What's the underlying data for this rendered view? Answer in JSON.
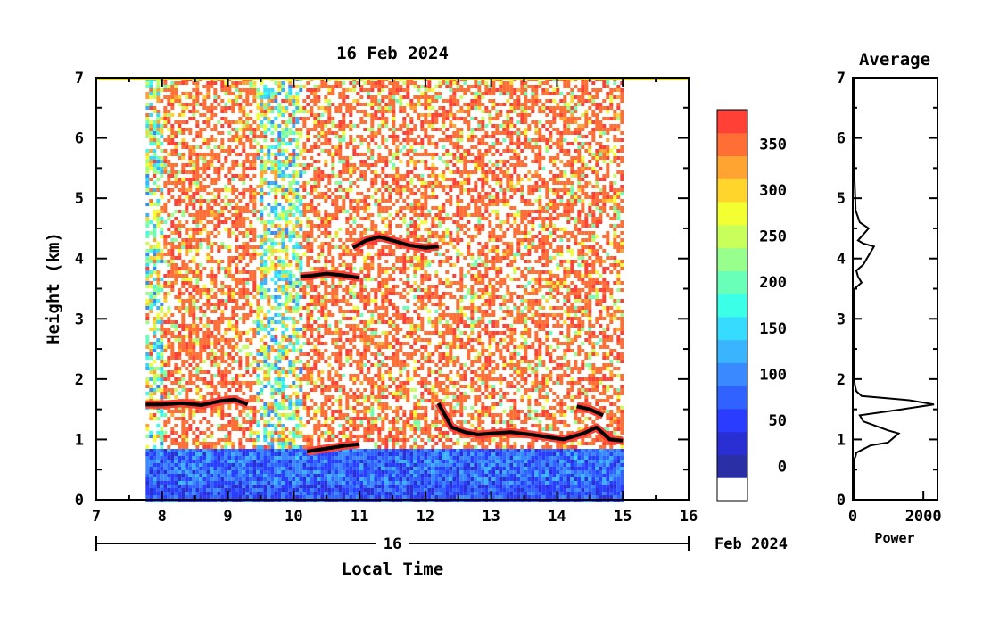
{
  "chart_data": [
    {
      "type": "heatmap",
      "title": "16 Feb 2024",
      "xlabel": "Local Time",
      "ylabel": "Height (km)",
      "xlim": [
        7,
        16
      ],
      "ylim": [
        0,
        7
      ],
      "x_ticks": [
        "7",
        "8",
        "9",
        "10",
        "11",
        "12",
        "13",
        "14",
        "15",
        "16"
      ],
      "y_ticks": [
        "0",
        "1",
        "2",
        "3",
        "4",
        "5",
        "6",
        "7"
      ],
      "date_axis": {
        "day_label": "16",
        "month_year_label": "Feb 2024"
      },
      "data_range": [
        7.75,
        15.0
      ],
      "colorbar": {
        "ticks": [
          "0",
          "50",
          "100",
          "150",
          "200",
          "250",
          "300",
          "350"
        ],
        "levels": [
          {
            "value": -25,
            "color": "#ffffff"
          },
          {
            "value": 0,
            "color": "#2b2fa6"
          },
          {
            "value": 25,
            "color": "#2a2fd4"
          },
          {
            "value": 50,
            "color": "#2a3cff"
          },
          {
            "value": 75,
            "color": "#2f62ff"
          },
          {
            "value": 100,
            "color": "#3a8aff"
          },
          {
            "value": 125,
            "color": "#3ab4ff"
          },
          {
            "value": 150,
            "color": "#36dcff"
          },
          {
            "value": 175,
            "color": "#3cffe8"
          },
          {
            "value": 200,
            "color": "#6affb8"
          },
          {
            "value": 225,
            "color": "#98ff8c"
          },
          {
            "value": 250,
            "color": "#c8ff5a"
          },
          {
            "value": 275,
            "color": "#f2ff30"
          },
          {
            "value": 300,
            "color": "#ffd52c"
          },
          {
            "value": 325,
            "color": "#ffa430"
          },
          {
            "value": 350,
            "color": "#ff6e34"
          },
          {
            "value": 375,
            "color": "#ff4036"
          }
        ]
      },
      "cloud_layers": [
        {
          "name": "low-layer-morning",
          "points": [
            [
              7.75,
              1.58
            ],
            [
              8.0,
              1.58
            ],
            [
              8.3,
              1.6
            ],
            [
              8.6,
              1.57
            ],
            [
              8.9,
              1.64
            ],
            [
              9.1,
              1.66
            ],
            [
              9.3,
              1.58
            ]
          ]
        },
        {
          "name": "mid-layer-10h",
          "points": [
            [
              10.1,
              3.7
            ],
            [
              10.3,
              3.72
            ],
            [
              10.5,
              3.75
            ],
            [
              10.75,
              3.72
            ],
            [
              11.0,
              3.68
            ]
          ]
        },
        {
          "name": "mid-layer-11h",
          "points": [
            [
              10.9,
              4.18
            ],
            [
              11.1,
              4.3
            ],
            [
              11.3,
              4.36
            ],
            [
              11.5,
              4.3
            ],
            [
              11.75,
              4.22
            ],
            [
              12.0,
              4.18
            ],
            [
              12.2,
              4.2
            ]
          ]
        },
        {
          "name": "low-layer-midday",
          "points": [
            [
              10.2,
              0.8
            ],
            [
              10.5,
              0.85
            ],
            [
              10.8,
              0.9
            ],
            [
              11.0,
              0.92
            ]
          ]
        },
        {
          "name": "low-layer-afternoon",
          "points": [
            [
              12.2,
              1.6
            ],
            [
              12.4,
              1.2
            ],
            [
              12.6,
              1.12
            ],
            [
              12.8,
              1.08
            ],
            [
              13.0,
              1.1
            ],
            [
              13.3,
              1.12
            ],
            [
              13.6,
              1.08
            ],
            [
              13.8,
              1.05
            ],
            [
              14.1,
              1.0
            ],
            [
              14.4,
              1.1
            ],
            [
              14.6,
              1.2
            ],
            [
              14.8,
              1.0
            ],
            [
              15.0,
              0.98
            ]
          ]
        },
        {
          "name": "upper-high-segment",
          "points": [
            [
              14.3,
              1.55
            ],
            [
              14.5,
              1.5
            ],
            [
              14.7,
              1.4
            ]
          ]
        }
      ]
    },
    {
      "type": "line",
      "title": "Average",
      "xlabel": "Power",
      "ylabel": "",
      "xlim": [
        0,
        2400
      ],
      "ylim": [
        0,
        7
      ],
      "x_ticks": [
        "0",
        "2000"
      ],
      "y_ticks": [
        "0",
        "1",
        "2",
        "3",
        "4",
        "5",
        "6",
        "7"
      ],
      "series": [
        {
          "x": [
            50,
            30,
            40,
            30,
            60,
            80,
            100,
            500,
            1000,
            1300,
            1000,
            300,
            200,
            1400,
            2300,
            1600,
            250,
            100,
            60,
            40,
            40,
            40,
            35,
            40,
            40,
            50,
            250,
            150,
            100,
            300,
            400,
            600,
            300,
            150,
            300,
            450,
            200,
            80,
            70,
            50,
            40,
            40,
            40,
            30,
            30,
            30
          ],
          "y": [
            0.0,
            0.2,
            0.5,
            0.65,
            0.7,
            0.72,
            0.78,
            0.9,
            0.95,
            1.1,
            1.15,
            1.3,
            1.4,
            1.5,
            1.58,
            1.65,
            1.72,
            1.8,
            1.9,
            2.0,
            2.2,
            2.5,
            2.8,
            3.0,
            3.3,
            3.5,
            3.6,
            3.7,
            3.8,
            3.9,
            4.0,
            4.2,
            4.25,
            4.3,
            4.4,
            4.5,
            4.6,
            4.8,
            5.0,
            5.3,
            5.6,
            5.9,
            6.2,
            6.5,
            6.8,
            7.0
          ]
        }
      ]
    }
  ]
}
